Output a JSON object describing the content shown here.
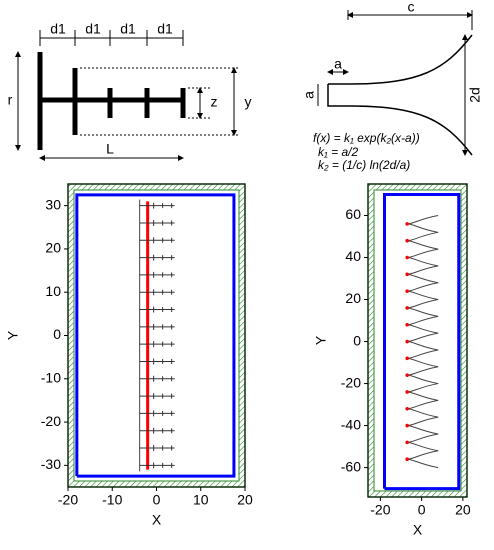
{
  "diagrams": {
    "yagi": {
      "labels": {
        "d1_a": "d1",
        "d1_b": "d1",
        "d1_c": "d1",
        "d1_d": "d1",
        "r": "r",
        "L": "L",
        "z": "z",
        "y": "y"
      }
    },
    "horn": {
      "labels": {
        "c": "c",
        "a_top": "a",
        "a_left": "a",
        "two_d": "2d"
      },
      "formulas": [
        "f(x) = k₁ exp(k₂(x-a))",
        "k₁ = a/2",
        "k₂ = (1/c) ln(2d/a)"
      ]
    }
  },
  "chart_data": [
    {
      "type": "line",
      "xlabel": "X",
      "ylabel": "Y",
      "xlim": [
        -20,
        20
      ],
      "ylim": [
        -35,
        35
      ],
      "xticks": [
        -20,
        -10,
        0,
        10,
        20
      ],
      "yticks": [
        -30,
        -20,
        -10,
        0,
        10,
        20,
        30
      ],
      "series": [
        {
          "color": "#0000ff",
          "x": [
            -18,
            17.5,
            17.5,
            -18,
            -18
          ],
          "y": [
            -32.5,
            -32.5,
            32.5,
            32.5,
            -32.5
          ]
        },
        {
          "color": "#ff0000",
          "x": [
            -2,
            -2
          ],
          "y": [
            -31,
            31
          ]
        }
      ],
      "element": "yagi",
      "element_x": -2,
      "element_y": [
        30,
        26,
        22,
        18,
        14,
        10,
        6,
        2,
        -2,
        -6,
        -10,
        -14,
        -18,
        -22,
        -26,
        -30
      ]
    },
    {
      "type": "line",
      "xlabel": "X",
      "ylabel": "Y",
      "xlim": [
        -26,
        22
      ],
      "ylim": [
        -74,
        75
      ],
      "xticks": [
        -20,
        0,
        20
      ],
      "yticks": [
        -60,
        -40,
        -20,
        0,
        20,
        40,
        60
      ],
      "series": [
        {
          "color": "#0000ff",
          "x": [
            -18,
            18,
            18,
            -18,
            -18
          ],
          "y": [
            -70,
            -70,
            70,
            70,
            -70
          ]
        }
      ],
      "element": "horn",
      "element_x": -7,
      "element_y": [
        56,
        48,
        40,
        32,
        24,
        16,
        8,
        0,
        -8,
        -16,
        -24,
        -32,
        -40,
        -48,
        -56
      ]
    }
  ]
}
